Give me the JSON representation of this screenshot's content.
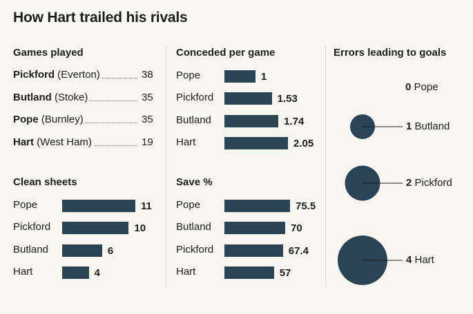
{
  "title": "How Hart trailed his rivals",
  "colors": {
    "bar": "#2b4455",
    "background": "#f7f6f1"
  },
  "chart_data": [
    {
      "type": "table",
      "title": "Games played",
      "rows": [
        {
          "name": "Pickford",
          "club": "(Everton)",
          "value": 38
        },
        {
          "name": "Butland",
          "club": "(Stoke)",
          "value": 35
        },
        {
          "name": "Pope",
          "club": "(Burnley)",
          "value": 35
        },
        {
          "name": "Hart",
          "club": "(West Ham)",
          "value": 19
        }
      ]
    },
    {
      "type": "bar",
      "title": "Conceded per game",
      "categories": [
        "Pope",
        "Pickford",
        "Butland",
        "Hart"
      ],
      "values": [
        1,
        1.53,
        1.74,
        2.05
      ],
      "value_labels": [
        "1",
        "1.53",
        "1.74",
        "2.05"
      ],
      "xlim": [
        0,
        2.05
      ]
    },
    {
      "type": "bar",
      "title": "Clean sheets",
      "categories": [
        "Pope",
        "Pickford",
        "Butland",
        "Hart"
      ],
      "values": [
        11,
        10,
        6,
        4
      ],
      "value_labels": [
        "11",
        "10",
        "6",
        "4"
      ],
      "xlim": [
        0,
        11
      ]
    },
    {
      "type": "bar",
      "title": "Save %",
      "categories": [
        "Pope",
        "Butland",
        "Pickford",
        "Hart"
      ],
      "values": [
        75.5,
        70,
        67.4,
        57
      ],
      "value_labels": [
        "75.5",
        "70",
        "67.4",
        "57"
      ],
      "xlim": [
        0,
        75.5
      ]
    },
    {
      "type": "scatter",
      "title": "Errors leading to goals",
      "categories": [
        "Pope",
        "Butland",
        "Pickford",
        "Hart"
      ],
      "values": [
        0,
        1,
        2,
        4
      ],
      "value_labels": [
        "0",
        "1",
        "2",
        "4"
      ]
    }
  ]
}
